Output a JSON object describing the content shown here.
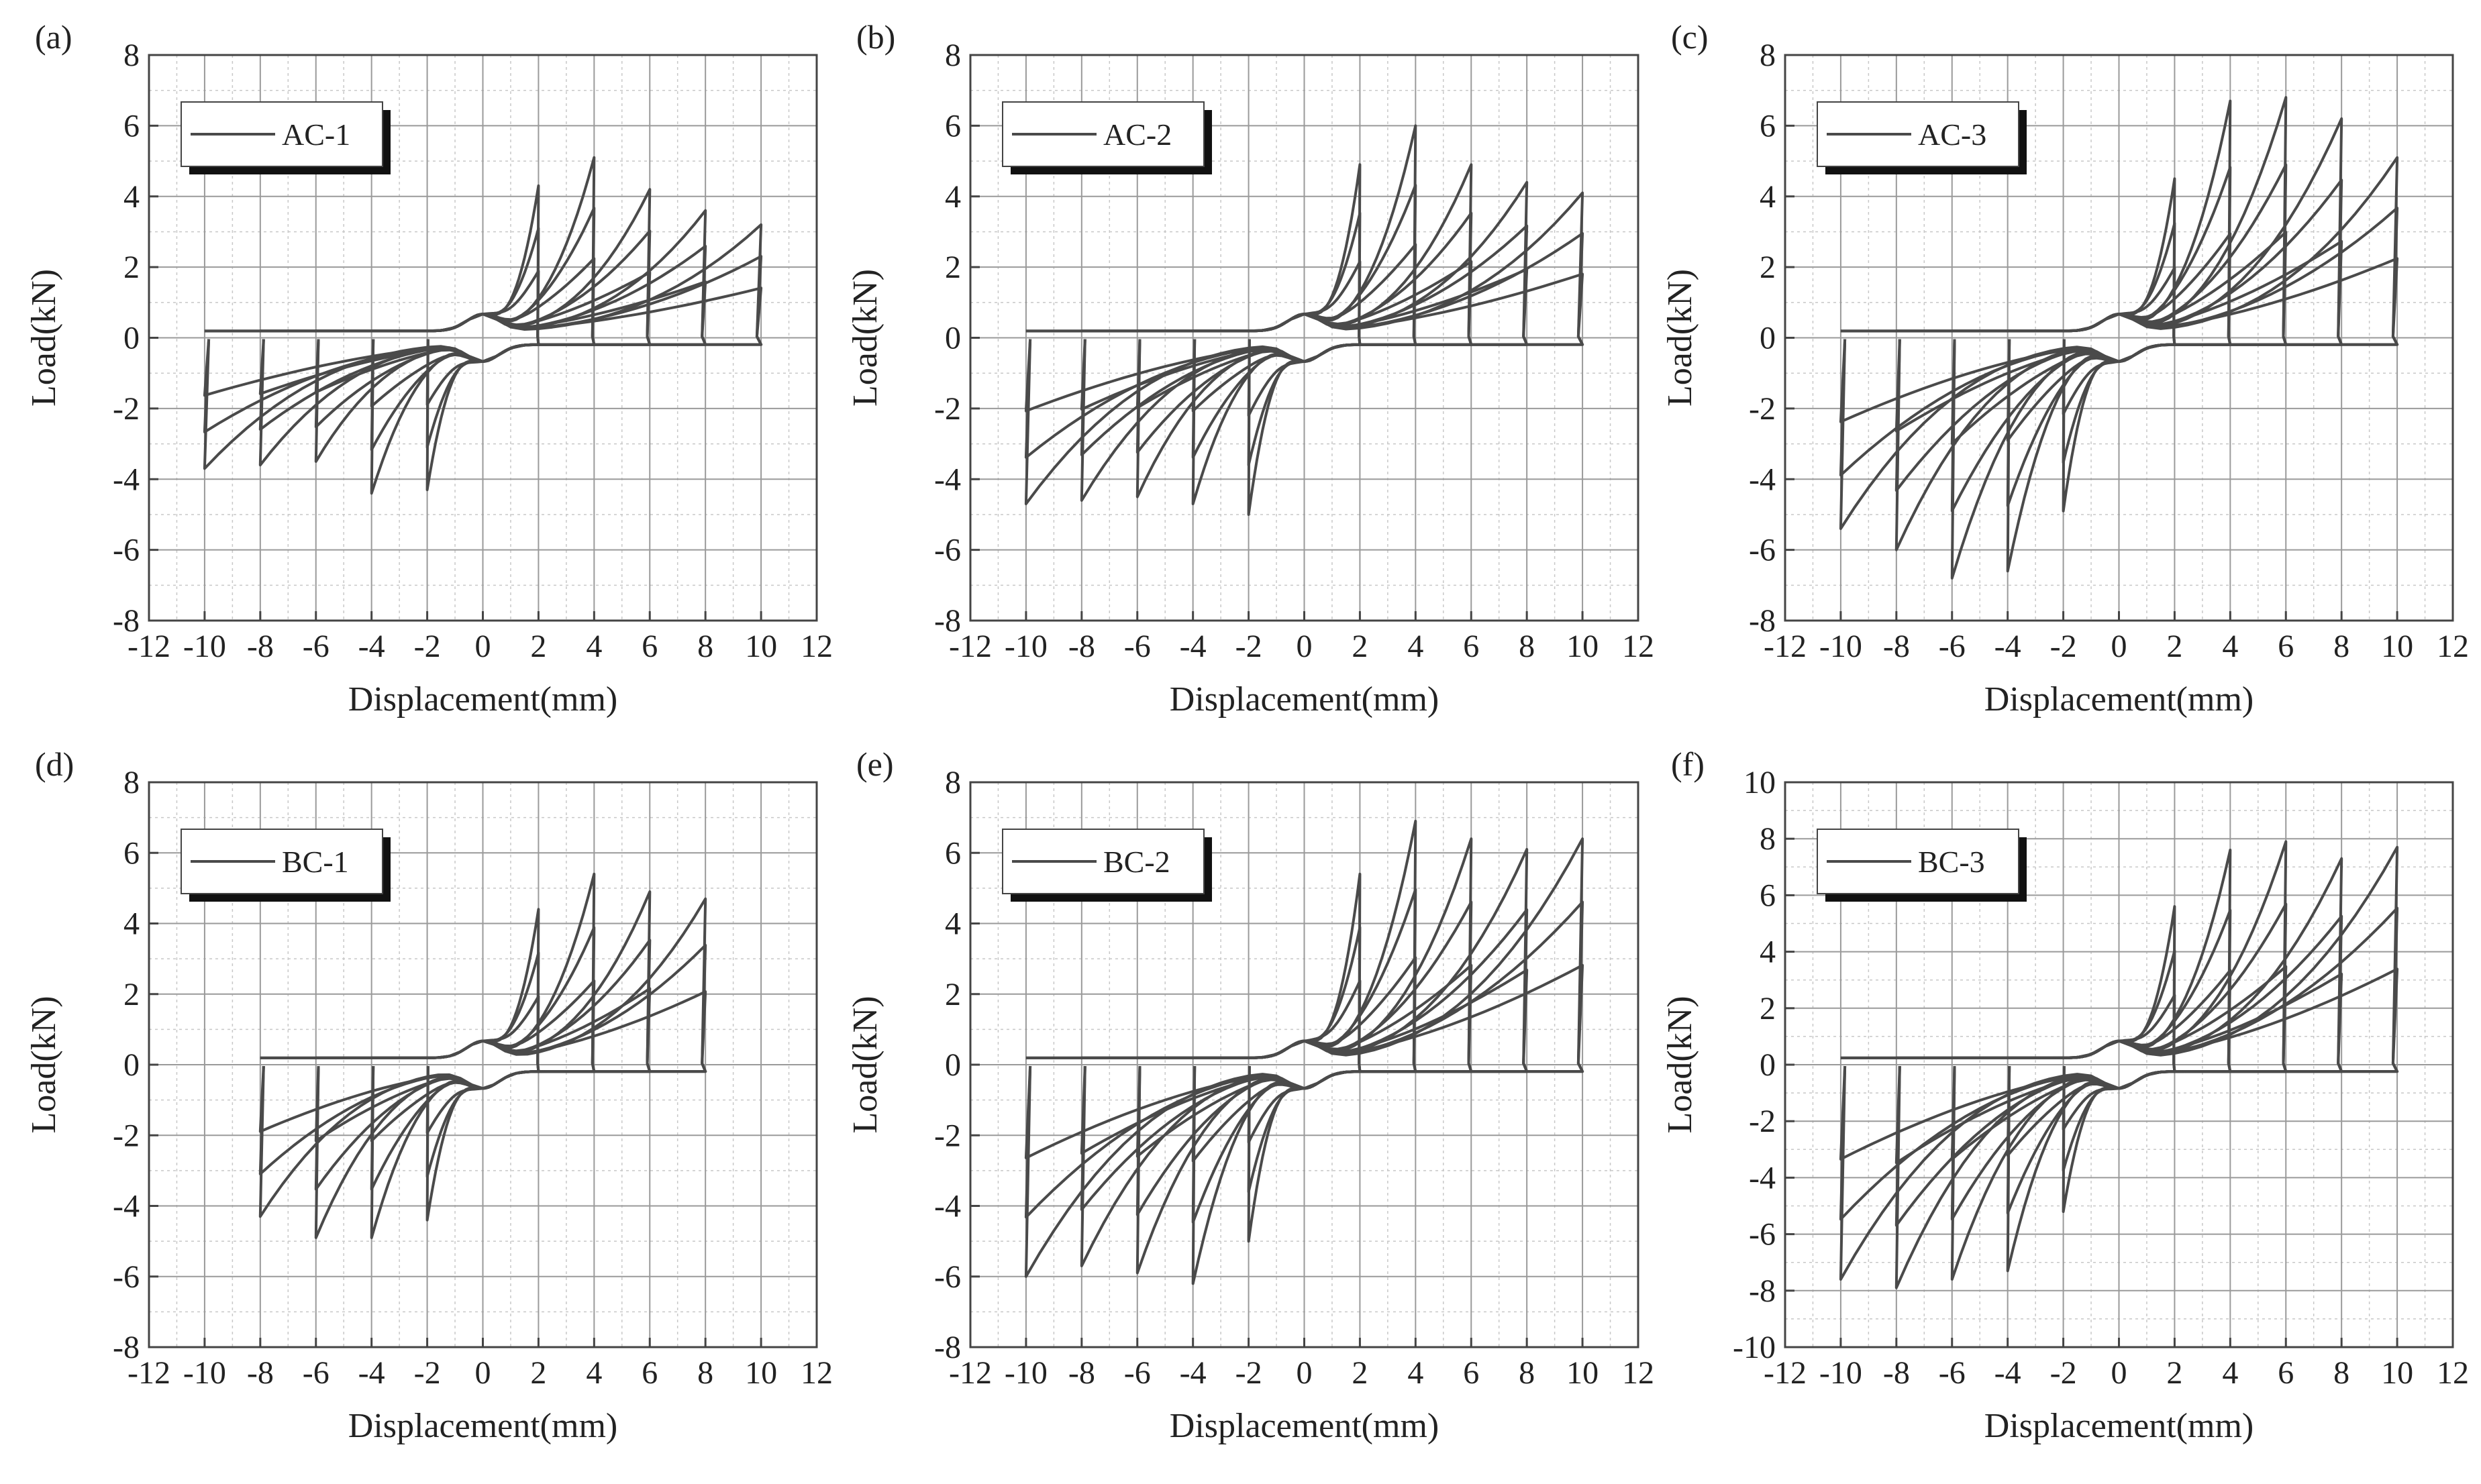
{
  "chart_data": [
    {
      "panel": "(a)",
      "type": "line",
      "legend": "AC-1",
      "xlabel": "Displacement(mm)",
      "ylabel": "Load(kN)",
      "xlim": [
        -12,
        12
      ],
      "ylim": [
        -8,
        8
      ],
      "xticks": [
        -12,
        -10,
        -8,
        -6,
        -4,
        -2,
        0,
        2,
        4,
        6,
        8,
        10,
        12
      ],
      "yticks": [
        -8,
        -6,
        -4,
        -2,
        0,
        2,
        4,
        6,
        8
      ],
      "cycles": [
        {
          "dmax": 2,
          "pmax": 4.3,
          "dmin": -2,
          "pmin": -4.3
        },
        {
          "dmax": 4,
          "pmax": 5.1,
          "dmin": -4,
          "pmin": -4.4
        },
        {
          "dmax": 6,
          "pmax": 4.2,
          "dmin": -6,
          "pmin": -3.5
        },
        {
          "dmax": 8,
          "pmax": 3.6,
          "dmin": -8,
          "pmin": -3.6
        },
        {
          "dmax": 10,
          "pmax": 3.2,
          "dmin": -10,
          "pmin": -3.7
        }
      ]
    },
    {
      "panel": "(b)",
      "type": "line",
      "legend": "AC-2",
      "xlabel": "Displacement(mm)",
      "ylabel": "Load(kN)",
      "xlim": [
        -12,
        12
      ],
      "ylim": [
        -8,
        8
      ],
      "xticks": [
        -12,
        -10,
        -8,
        -6,
        -4,
        -2,
        0,
        2,
        4,
        6,
        8,
        10,
        12
      ],
      "yticks": [
        -8,
        -6,
        -4,
        -2,
        0,
        2,
        4,
        6,
        8
      ],
      "cycles": [
        {
          "dmax": 2,
          "pmax": 4.9,
          "dmin": -2,
          "pmin": -5.0
        },
        {
          "dmax": 4,
          "pmax": 6.0,
          "dmin": -4,
          "pmin": -4.7
        },
        {
          "dmax": 6,
          "pmax": 4.9,
          "dmin": -6,
          "pmin": -4.5
        },
        {
          "dmax": 8,
          "pmax": 4.4,
          "dmin": -8,
          "pmin": -4.6
        },
        {
          "dmax": 10,
          "pmax": 4.1,
          "dmin": -10,
          "pmin": -4.7
        }
      ]
    },
    {
      "panel": "(c)",
      "type": "line",
      "legend": "AC-3",
      "xlabel": "Displacement(mm)",
      "ylabel": "Load(kN)",
      "xlim": [
        -12,
        12
      ],
      "ylim": [
        -8,
        8
      ],
      "xticks": [
        -12,
        -10,
        -8,
        -6,
        -4,
        -2,
        0,
        2,
        4,
        6,
        8,
        10,
        12
      ],
      "yticks": [
        -8,
        -6,
        -4,
        -2,
        0,
        2,
        4,
        6,
        8
      ],
      "cycles": [
        {
          "dmax": 2,
          "pmax": 4.5,
          "dmin": -2,
          "pmin": -4.9
        },
        {
          "dmax": 4,
          "pmax": 6.7,
          "dmin": -4,
          "pmin": -6.6
        },
        {
          "dmax": 6,
          "pmax": 6.8,
          "dmin": -6,
          "pmin": -6.8
        },
        {
          "dmax": 8,
          "pmax": 6.2,
          "dmin": -8,
          "pmin": -6.0
        },
        {
          "dmax": 10,
          "pmax": 5.1,
          "dmin": -10,
          "pmin": -5.4
        }
      ]
    },
    {
      "panel": "(d)",
      "type": "line",
      "legend": "BC-1",
      "xlabel": "Displacement(mm)",
      "ylabel": "Load(kN)",
      "xlim": [
        -12,
        12
      ],
      "ylim": [
        -8,
        8
      ],
      "xticks": [
        -12,
        -10,
        -8,
        -6,
        -4,
        -2,
        0,
        2,
        4,
        6,
        8,
        10,
        12
      ],
      "yticks": [
        -8,
        -6,
        -4,
        -2,
        0,
        2,
        4,
        6,
        8
      ],
      "cycles": [
        {
          "dmax": 2,
          "pmax": 4.4,
          "dmin": -2,
          "pmin": -4.4
        },
        {
          "dmax": 4,
          "pmax": 5.4,
          "dmin": -4,
          "pmin": -4.9
        },
        {
          "dmax": 6,
          "pmax": 4.9,
          "dmin": -6,
          "pmin": -4.9
        },
        {
          "dmax": 8,
          "pmax": 4.7,
          "dmin": -8,
          "pmin": -4.3
        }
      ]
    },
    {
      "panel": "(e)",
      "type": "line",
      "legend": "BC-2",
      "xlabel": "Displacement(mm)",
      "ylabel": "Load(kN)",
      "xlim": [
        -12,
        12
      ],
      "ylim": [
        -8,
        8
      ],
      "xticks": [
        -12,
        -10,
        -8,
        -6,
        -4,
        -2,
        0,
        2,
        4,
        6,
        8,
        10,
        12
      ],
      "yticks": [
        -8,
        -6,
        -4,
        -2,
        0,
        2,
        4,
        6,
        8
      ],
      "cycles": [
        {
          "dmax": 2,
          "pmax": 5.4,
          "dmin": -2,
          "pmin": -5.0
        },
        {
          "dmax": 4,
          "pmax": 6.9,
          "dmin": -4,
          "pmin": -6.2
        },
        {
          "dmax": 6,
          "pmax": 6.4,
          "dmin": -6,
          "pmin": -5.9
        },
        {
          "dmax": 8,
          "pmax": 6.1,
          "dmin": -8,
          "pmin": -5.7
        },
        {
          "dmax": 10,
          "pmax": 6.4,
          "dmin": -10,
          "pmin": -6.0
        }
      ]
    },
    {
      "panel": "(f)",
      "type": "line",
      "legend": "BC-3",
      "xlabel": "Displacement(mm)",
      "ylabel": "Load(kN)",
      "xlim": [
        -12,
        12
      ],
      "ylim": [
        -10,
        10
      ],
      "xticks": [
        -12,
        -10,
        -8,
        -6,
        -4,
        -2,
        0,
        2,
        4,
        6,
        8,
        10,
        12
      ],
      "yticks": [
        -10,
        -8,
        -6,
        -4,
        -2,
        0,
        2,
        4,
        6,
        8,
        10
      ],
      "cycles": [
        {
          "dmax": 2,
          "pmax": 5.6,
          "dmin": -2,
          "pmin": -5.2
        },
        {
          "dmax": 4,
          "pmax": 7.6,
          "dmin": -4,
          "pmin": -7.3
        },
        {
          "dmax": 6,
          "pmax": 7.9,
          "dmin": -6,
          "pmin": -7.6
        },
        {
          "dmax": 8,
          "pmax": 7.3,
          "dmin": -8,
          "pmin": -7.9
        },
        {
          "dmax": 10,
          "pmax": 7.7,
          "dmin": -10,
          "pmin": -7.6
        }
      ]
    }
  ]
}
